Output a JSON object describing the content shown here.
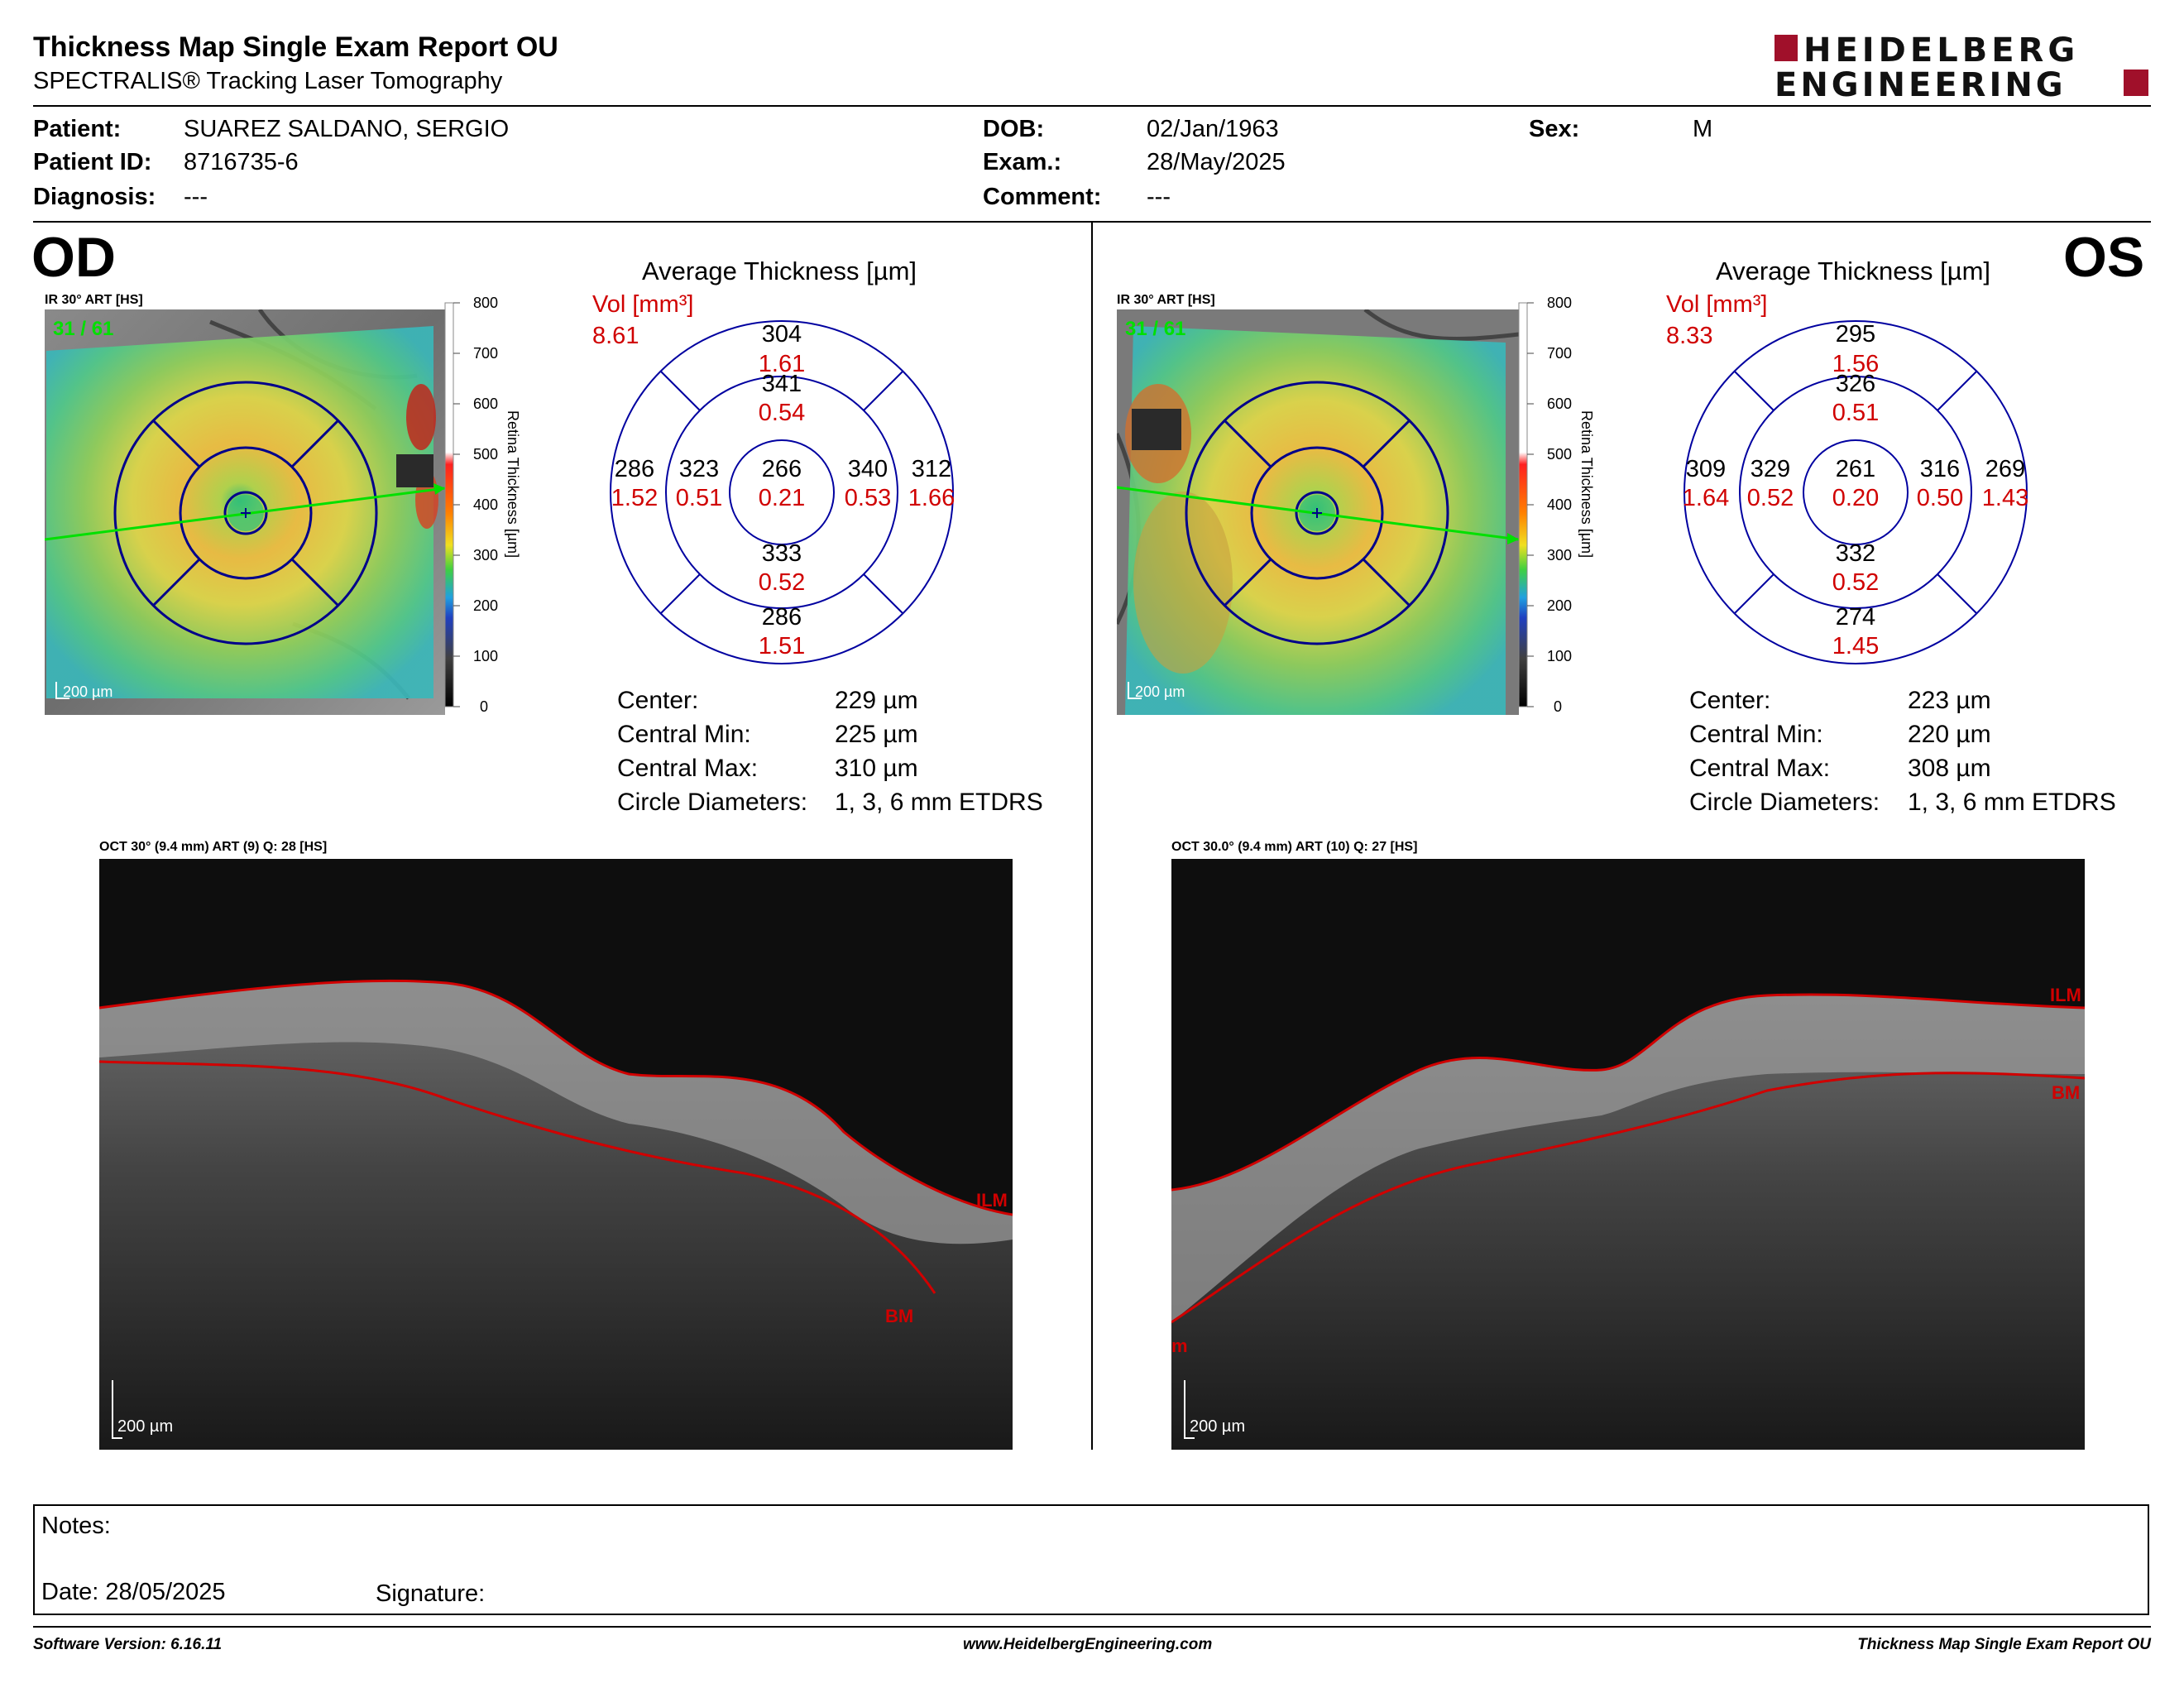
{
  "header": {
    "title": "Thickness Map Single Exam Report OU",
    "subtitle": "SPECTRALIS® Tracking Laser Tomography",
    "logo_line1": "HEIDELBERG",
    "logo_line2": "ENGINEERING"
  },
  "patient": {
    "patient_label": "Patient:",
    "patient_value": "SUAREZ SALDANO, SERGIO",
    "id_label": "Patient ID:",
    "id_value": "8716735-6",
    "diagnosis_label": "Diagnosis:",
    "diagnosis_value": "---",
    "dob_label": "DOB:",
    "dob_value": "02/Jan/1963",
    "exam_label": "Exam.:",
    "exam_value": "28/May/2025",
    "comment_label": "Comment:",
    "comment_value": "---",
    "sex_label": "Sex:",
    "sex_value": "M"
  },
  "colors": {
    "accent_red": "#d00000",
    "grid_blue": "#0000a0",
    "logo_red": "#a0102a",
    "tracking_green": "#00e000"
  },
  "od": {
    "eye_label": "OD",
    "ir_label": "IR 30° ART [HS]",
    "frames": "31 / 61",
    "scale": "200 µm",
    "colorbar_ticks": [
      "800",
      "700",
      "600",
      "500",
      "400",
      "300",
      "200",
      "100",
      "0"
    ],
    "colorbar_title": "Retina Thickness [µm]",
    "thickness_title": "Average Thickness [µm]",
    "vol_label": "Vol [mm³]",
    "vol_value": "8.61",
    "sectors": {
      "outer_sup": [
        "304",
        "1.61"
      ],
      "inner_sup": [
        "341",
        "0.54"
      ],
      "outer_nas": [
        "286",
        "1.52"
      ],
      "inner_nas": [
        "323",
        "0.51"
      ],
      "center": [
        "266",
        "0.21"
      ],
      "inner_tmp": [
        "340",
        "0.53"
      ],
      "outer_tmp": [
        "312",
        "1.66"
      ],
      "inner_inf": [
        "333",
        "0.52"
      ],
      "outer_inf": [
        "286",
        "1.51"
      ]
    },
    "stats": {
      "center_label": "Center:",
      "center_value": "229 µm",
      "min_label": "Central Min:",
      "min_value": "225 µm",
      "max_label": "Central Max:",
      "max_value": "310 µm",
      "circle_label": "Circle Diameters:",
      "circle_value": "1, 3, 6 mm ETDRS"
    },
    "oct_label": "OCT 30° (9.4 mm) ART (9) Q: 28 [HS]",
    "ilm": "ILM",
    "bm": "BM",
    "oct_scale": "200 µm"
  },
  "os": {
    "eye_label": "OS",
    "ir_label": "IR 30° ART [HS]",
    "frames": "31 / 61",
    "scale": "200 µm",
    "colorbar_ticks": [
      "800",
      "700",
      "600",
      "500",
      "400",
      "300",
      "200",
      "100",
      "0"
    ],
    "colorbar_title": "Retina Thickness [µm]",
    "thickness_title": "Average Thickness [µm]",
    "vol_label": "Vol [mm³]",
    "vol_value": "8.33",
    "sectors": {
      "outer_sup": [
        "295",
        "1.56"
      ],
      "inner_sup": [
        "326",
        "0.51"
      ],
      "outer_nas": [
        "309",
        "1.64"
      ],
      "inner_nas": [
        "329",
        "0.52"
      ],
      "center": [
        "261",
        "0.20"
      ],
      "inner_tmp": [
        "316",
        "0.50"
      ],
      "outer_tmp": [
        "269",
        "1.43"
      ],
      "inner_inf": [
        "332",
        "0.52"
      ],
      "outer_inf": [
        "274",
        "1.45"
      ]
    },
    "stats": {
      "center_label": "Center:",
      "center_value": "223 µm",
      "min_label": "Central Min:",
      "min_value": "220 µm",
      "max_label": "Central Max:",
      "max_value": "308 µm",
      "circle_label": "Circle Diameters:",
      "circle_value": "1, 3, 6 mm ETDRS"
    },
    "oct_label": "OCT 30.0° (9.4 mm) ART (10) Q: 27 [HS]",
    "ilm": "ILM",
    "bm": "BM",
    "bm_left_fragment": "m",
    "oct_scale": "200 µm"
  },
  "notes": {
    "notes_label": "Notes:",
    "date_label": "Date: 28/05/2025",
    "signature_label": "Signature:"
  },
  "footer": {
    "software": "Software Version: 6.16.11",
    "website": "www.HeidelbergEngineering.com",
    "report": "Thickness Map Single Exam Report OU"
  }
}
